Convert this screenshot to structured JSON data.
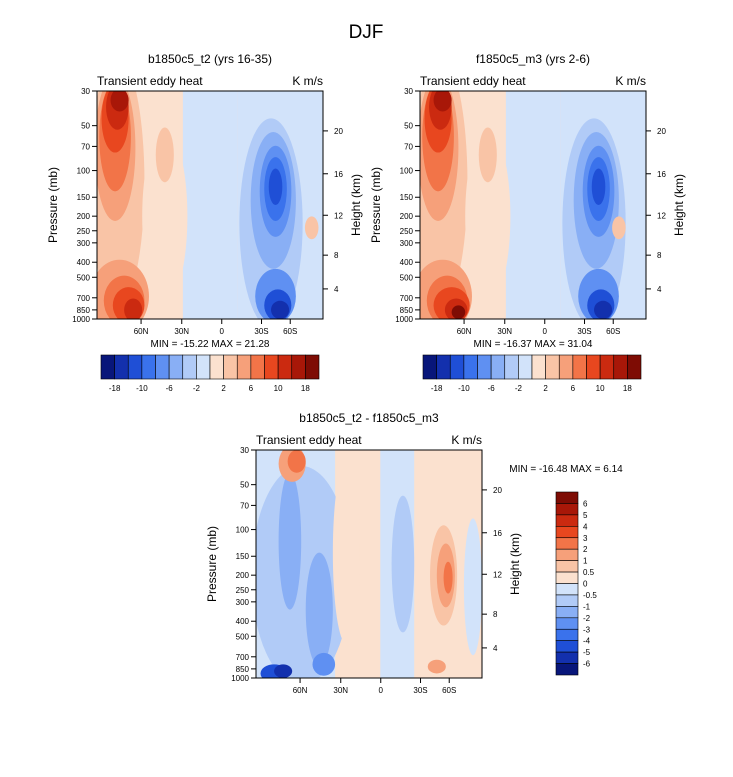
{
  "page": {
    "title": "DJF"
  },
  "colors": {
    "c1": "#08167a",
    "c2": "#1330ad",
    "c3": "#1f4fd6",
    "c4": "#3a72ec",
    "c5": "#5f90f2",
    "c6": "#89aff5",
    "c7": "#b1cbf7",
    "c8": "#d2e3fa",
    "w1": "#fbe1cf",
    "w2": "#f9c4a6",
    "w3": "#f6a07a",
    "w4": "#f27448",
    "w5": "#e8471f",
    "w6": "#cb2a10",
    "w7": "#a81708",
    "w8": "#7e0c04"
  },
  "chart_data": [
    {
      "type": "heatmap",
      "title": "b1850c5_t2 (yrs 16-35)",
      "left_label": "Transient eddy heat",
      "right_label": "K m/s",
      "ylabel": "Pressure (mb)",
      "y2label": "Height (km)",
      "pressure_ticks": [
        "30",
        "50",
        "70",
        "100",
        "150",
        "200",
        "250",
        "300",
        "400",
        "500",
        "700",
        "850",
        "1000"
      ],
      "height_ticks": [
        "20",
        "16",
        "12",
        "8",
        "4"
      ],
      "x_ticks": [
        "60N",
        "30N",
        "0",
        "30S",
        "60S"
      ],
      "stats": "MIN = -15.22  MAX =  21.28",
      "colorbar_labels": [
        "-18",
        "-10",
        "-6",
        "-2",
        "2",
        "6",
        "10",
        "18"
      ],
      "min": -15.22,
      "max": 21.28
    },
    {
      "type": "heatmap",
      "title": "f1850c5_m3 (yrs 2-6)",
      "left_label": "Transient eddy heat",
      "right_label": "K m/s",
      "ylabel": "Pressure (mb)",
      "y2label": "Height (km)",
      "pressure_ticks": [
        "30",
        "50",
        "70",
        "100",
        "150",
        "200",
        "250",
        "300",
        "400",
        "500",
        "700",
        "850",
        "1000"
      ],
      "height_ticks": [
        "20",
        "16",
        "12",
        "8",
        "4"
      ],
      "x_ticks": [
        "60N",
        "30N",
        "0",
        "30S",
        "60S"
      ],
      "stats": "MIN = -16.37  MAX =  31.04",
      "colorbar_labels": [
        "-18",
        "-10",
        "-6",
        "-2",
        "2",
        "6",
        "10",
        "18"
      ],
      "min": -16.37,
      "max": 31.04
    },
    {
      "type": "heatmap",
      "title": "b1850c5_t2 - f1850c5_m3",
      "left_label": "Transient eddy heat",
      "right_label": "K m/s",
      "ylabel": "Pressure (mb)",
      "y2label": "Height (km)",
      "pressure_ticks": [
        "30",
        "50",
        "70",
        "100",
        "150",
        "200",
        "250",
        "300",
        "400",
        "500",
        "700",
        "850",
        "1000"
      ],
      "height_ticks": [
        "20",
        "16",
        "12",
        "8",
        "4"
      ],
      "x_ticks": [
        "60N",
        "30N",
        "0",
        "30S",
        "60S"
      ],
      "stats": "MIN = -16.48  MAX =   6.14",
      "colorbar_labels": [
        "6",
        "5",
        "4",
        "3",
        "2",
        "1",
        "0.5",
        "0",
        "-0.5",
        "-1",
        "-2",
        "-3",
        "-4",
        "-5",
        "-6"
      ],
      "min": -16.48,
      "max": 6.14
    }
  ]
}
